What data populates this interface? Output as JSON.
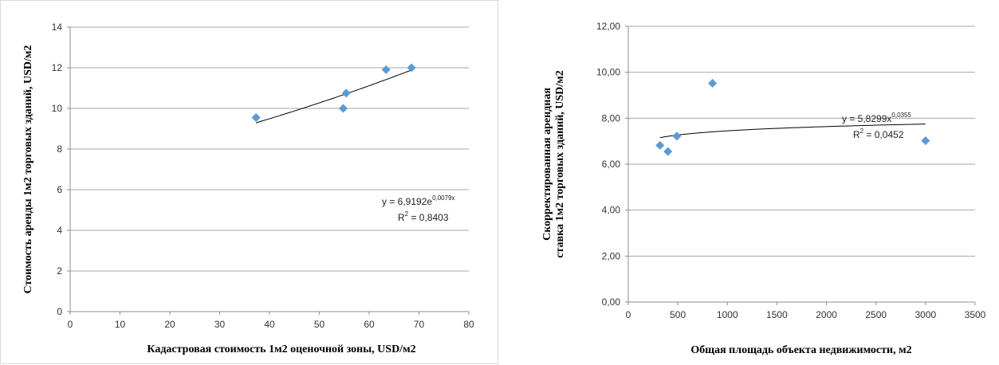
{
  "chart_data": [
    {
      "type": "scatter",
      "xlabel": "Кадастровая стоимость 1м2 оценочной зоны, USD/м2",
      "ylabel": "Стоимость аренды 1м2 торговых зданий, USD/м2",
      "xlim": [
        0,
        80
      ],
      "ylim": [
        0,
        14
      ],
      "xticks": [
        "0",
        "10",
        "20",
        "30",
        "40",
        "50",
        "60",
        "70",
        "80"
      ],
      "yticks": [
        "0",
        "2",
        "4",
        "6",
        "8",
        "10",
        "12",
        "14"
      ],
      "grid": "horizontal",
      "marker_color": "#5b9bd5",
      "points": [
        {
          "x": 37.3,
          "y": 9.55
        },
        {
          "x": 54.8,
          "y": 10.0
        },
        {
          "x": 55.4,
          "y": 10.75
        },
        {
          "x": 63.4,
          "y": 11.9
        },
        {
          "x": 68.5,
          "y": 12.0
        }
      ],
      "trendline": {
        "type": "exponential",
        "a": 6.9192,
        "b": 0.0079,
        "x_range": [
          37.3,
          68.5
        ],
        "equation": {
          "prefix": "y = 6,9192e",
          "sup": "0,0079x"
        },
        "r2": {
          "prefix": "R",
          "sup": "2",
          "suffix": " = 0,8403"
        }
      }
    },
    {
      "type": "scatter",
      "xlabel": "Общая площадь объекта недвижимости, м2",
      "ylabel_lines": [
        "Скорректированная арендная",
        "ставка 1м2 торговых зданий, USD/м2"
      ],
      "xlim": [
        0,
        3500
      ],
      "ylim": [
        0,
        12
      ],
      "xticks": [
        "0",
        "500",
        "1000",
        "1500",
        "2000",
        "2500",
        "3000",
        "3500"
      ],
      "yticks": [
        "0,00",
        "2,00",
        "4,00",
        "6,00",
        "8,00",
        "10,00",
        "12,00"
      ],
      "grid": "horizontal",
      "marker_color": "#5b9bd5",
      "points": [
        {
          "x": 320,
          "y": 6.82
        },
        {
          "x": 400,
          "y": 6.55
        },
        {
          "x": 490,
          "y": 7.22
        },
        {
          "x": 850,
          "y": 9.52
        },
        {
          "x": 3000,
          "y": 7.02
        }
      ],
      "trendline": {
        "type": "power",
        "a": 5.8299,
        "b": 0.0355,
        "x_range": [
          320,
          3000
        ],
        "equation": {
          "prefix": "y = 5,8299x",
          "sup": "0,0355"
        },
        "r2": {
          "prefix": "R",
          "sup": "2",
          "suffix": " = 0,0452"
        }
      }
    }
  ]
}
